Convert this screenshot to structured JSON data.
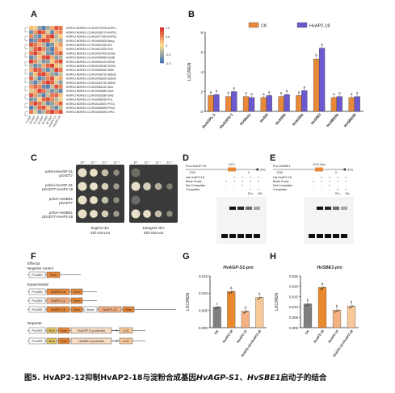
{
  "panels": {
    "a": "A",
    "b": "B",
    "c": "C",
    "d": "D",
    "e": "E",
    "f": "F",
    "g": "G",
    "h": "H"
  },
  "heatmap": {
    "genes": [
      "HORVU.MOREX.r3.1HG0078700 AGPL1",
      "HORVU.MOREX.r3.3HG0296770 AGPS1",
      "HORVU.MOREX.r3.1HG0077520 AGPS2",
      "HORVU.MOREX.r3.7HG0693000 Waxy",
      "HORVU.MOREX.r3.7HG0621930 SSI",
      "HORVU.MOREX.r3.7HG0613220 SSII",
      "HORVU.MOREX.r3.2HG0037400 SSIIIa",
      "HORVU.MOREX.r3.1HG0064660 SSIIIb",
      "HORVU.MOREX.r3.1HG0053110 SSIVa",
      "HORVU.MOREX.r3.2HG0148780 SSIVb",
      "HORVU.MOREX.r3.7HG0646810 SBEI",
      "HORVU.MOREX.r3.2HG0068720 SBEIIa",
      "HORVU.MOREX.r3.5HG0456620 SBEIIb",
      "HORVU.MOREX.r3.5HG0491760 SBEIII",
      "HORVU.MOREX.r3.1HG0081140 ISA1",
      "HORVU.MOREX.r3.4HG0353580 ISA2",
      "HORVU.MOREX.r3.3HG0303280 ISA3",
      "HORVU.MOREX.r3.7HG0688250 PUL",
      "HORVU.MOREX.r3.2HG0145870 PHO1",
      "HORVU.MOREX.r3.1HG0066590 PHO2",
      "HORVU.MOREX.r3.3HG0263290 DPE1"
    ],
    "samples": [
      "5 DAP",
      "10 DAP",
      "15 DAP",
      "20 DAP",
      "25 DAP",
      "30 DAP",
      "HvAP2-12",
      "HvAP2-18"
    ],
    "scale_values": [
      "1.0",
      "0.5",
      "0",
      "-0.5",
      "-1.0"
    ],
    "colors": {
      "high": "#d73027",
      "mid": "#fee090",
      "low": "#4575b4"
    },
    "cells": [
      [
        0.2,
        0.1,
        -0.6,
        -0.9,
        -0.5,
        0.3,
        0.8,
        0.6
      ],
      [
        -0.7,
        0.4,
        0.9,
        0.7,
        -0.2,
        -0.8,
        0.3,
        0.5
      ],
      [
        0.5,
        -0.6,
        -0.8,
        0.2,
        0.7,
        0.9,
        -0.4,
        0.1
      ],
      [
        -0.9,
        -0.7,
        0.6,
        0.9,
        0.8,
        0.2,
        -0.3,
        -0.5
      ],
      [
        0.8,
        0.6,
        0.3,
        -0.4,
        -0.9,
        -0.7,
        0.2,
        0.4
      ],
      [
        -0.3,
        0.7,
        0.9,
        0.5,
        -0.6,
        -0.9,
        0.4,
        0.1
      ],
      [
        0.6,
        0.9,
        0.4,
        -0.2,
        -0.7,
        -0.8,
        0.5,
        0.7
      ],
      [
        -0.8,
        -0.5,
        0.2,
        0.8,
        0.9,
        0.3,
        -0.6,
        -0.4
      ],
      [
        0.9,
        0.5,
        -0.3,
        -0.7,
        -0.6,
        0.1,
        0.6,
        0.8
      ],
      [
        -0.4,
        -0.8,
        -0.6,
        0.3,
        0.7,
        0.9,
        0.2,
        -0.2
      ],
      [
        0.3,
        0.8,
        0.7,
        -0.5,
        -0.8,
        -0.4,
        0.9,
        0.6
      ],
      [
        -0.6,
        0.2,
        0.8,
        0.9,
        0.4,
        -0.5,
        -0.7,
        -0.3
      ],
      [
        0.7,
        -0.3,
        -0.9,
        -0.6,
        0.5,
        0.8,
        0.1,
        0.3
      ],
      [
        -0.5,
        -0.9,
        -0.4,
        0.6,
        0.9,
        0.7,
        -0.2,
        -0.6
      ],
      [
        0.4,
        0.7,
        0.5,
        -0.8,
        -0.9,
        -0.3,
        0.8,
        0.5
      ],
      [
        -0.2,
        0.3,
        0.9,
        0.6,
        -0.4,
        -0.7,
        -0.5,
        -0.8
      ],
      [
        0.8,
        0.4,
        -0.5,
        -0.9,
        -0.3,
        0.6,
        0.7,
        0.2
      ],
      [
        -0.7,
        -0.6,
        0.1,
        0.7,
        0.8,
        0.5,
        -0.4,
        -0.1
      ],
      [
        0.5,
        0.9,
        0.6,
        -0.3,
        -0.8,
        -0.6,
        0.3,
        0.7
      ],
      [
        -0.9,
        -0.4,
        0.7,
        0.8,
        0.2,
        -0.5,
        -0.8,
        -0.3
      ],
      [
        0.6,
        -0.2,
        -0.7,
        -0.4,
        0.6,
        0.9,
        0.5,
        0.8
      ]
    ]
  },
  "chart_data": [
    {
      "id": "B",
      "type": "bar",
      "ylabel": "LUC/REN",
      "ylim": [
        0,
        8
      ],
      "yticks": [
        0,
        2,
        4,
        6,
        8
      ],
      "categories": [
        "HvAGPL-1",
        "HvAGPS-1",
        "HvWaxy",
        "HvSSI",
        "HvSSIIa",
        "HvSSIIIa",
        "HvSBEI",
        "HvSBEIIa",
        "HvSBEIIb"
      ],
      "series": [
        {
          "name": "CK",
          "color": "#e8893a",
          "values": [
            1.6,
            1.5,
            1.5,
            1.4,
            1.5,
            1.6,
            5.3,
            1.4,
            1.4
          ],
          "letters": [
            "a",
            "b",
            "a",
            "a",
            "a",
            "a",
            "b",
            "a",
            "a"
          ]
        },
        {
          "name": "HvAP2-18",
          "color": "#6a5acd",
          "values": [
            1.7,
            2.0,
            1.4,
            1.6,
            1.7,
            2.1,
            6.4,
            1.5,
            1.5
          ],
          "letters": [
            "a",
            "a",
            "a",
            "a",
            "a",
            "a",
            "a",
            "a",
            "a"
          ]
        }
      ]
    },
    {
      "id": "G",
      "type": "bar",
      "title": "HvAGP-S1-pro",
      "ylabel": "LUC/REN",
      "ylim": [
        0,
        0.015
      ],
      "yticks": [
        "0.000",
        "0.005",
        "0.010",
        "0.015"
      ],
      "categories": [
        "CK",
        "HvAP2-18",
        "HvAP2-12",
        "HvAP2-12+HvAP2-18"
      ],
      "values": [
        0.006,
        0.0105,
        0.0048,
        0.0088
      ],
      "letters": [
        "c",
        "a",
        "d",
        "b"
      ],
      "colors": [
        "#7f7f7f",
        "#e8892d",
        "#f4b183",
        "#f7c99a"
      ]
    },
    {
      "id": "H",
      "type": "bar",
      "title": "HvSBE1-pro",
      "ylabel": "LUC/REN",
      "ylim": [
        0,
        0.025
      ],
      "yticks": [
        "0.000",
        "0.005",
        "0.010",
        "0.015",
        "0.020",
        "0.025"
      ],
      "categories": [
        "CK",
        "HvAP2-18",
        "HvAP2-12",
        "HvAP2-12+HvAP2-18"
      ],
      "values": [
        0.0115,
        0.0195,
        0.0085,
        0.0105
      ],
      "letters": [
        "b",
        "a",
        "b",
        "b"
      ],
      "colors": [
        "#7f7f7f",
        "#e8892d",
        "#f4b183",
        "#f7c99a"
      ]
    }
  ],
  "y1h": {
    "rows": [
      [
        "pAbAi-HvAGP-S1",
        "pGADT7"
      ],
      [
        "pAbAi-HvAGP-S1",
        "pGADT7-HvAP2-18"
      ],
      [
        "pAbAi-HvSBE1",
        "pGADT7"
      ],
      [
        "pAbAi-HvSBE1",
        "pGADT7-HvAP2-18"
      ]
    ],
    "dilutions": [
      "10⁰",
      "10⁻¹",
      "10⁻²",
      "10⁻³"
    ],
    "plate_left": [
      "0ng/ml AbA",
      "SD/-Ura-Leu"
    ],
    "plate_right": [
      "150ng/ml AbA",
      "SD/-Ura-Leu"
    ]
  },
  "emsa_d": {
    "probe_title": "Pro-HvAGP-S1",
    "box": "GCC",
    "pos_left": "1700",
    "pos_mid": "0",
    "atg": "ATG",
    "rows": [
      "His-HvAP2-18",
      "Biotin Probe",
      "Mut Competitor",
      "Competitor"
    ],
    "fold": [
      "20 x",
      "40x"
    ]
  },
  "emsa_e": {
    "probe_title": "Pro-HvSBE1",
    "box": "GCC-Box",
    "pos_left": "1700",
    "pos_mid": "0",
    "atg": "ATG",
    "rows": [
      "His-HvAP2-18",
      "Biotin Probe",
      "Mut Competitor",
      "Competitor"
    ],
    "fold": [
      "20 x",
      "40x"
    ]
  },
  "constructs": {
    "effector": "Effector",
    "negative": "Negative control",
    "experimental": "Experimental",
    "reporter": "Reporter",
    "pro35s": "Pro35S",
    "term": "Term",
    "ap2_18": "HvAP2-18",
    "ap2_12": "HvAP2-12",
    "linker": "linker",
    "b16": "B16",
    "agp_promoter": "HvAGP-S promoter",
    "sbe_promoter": "HvSBE1 promoter",
    "luc": "LUC"
  },
  "caption": {
    "prefix": "图5.  HvAP2-12抑制HvAP2-18与淀粉合成基因",
    "gene1": "HvAGP-S1",
    "sep": "、",
    "gene2": "HvSBE1",
    "suffix": "启动子的结合"
  }
}
